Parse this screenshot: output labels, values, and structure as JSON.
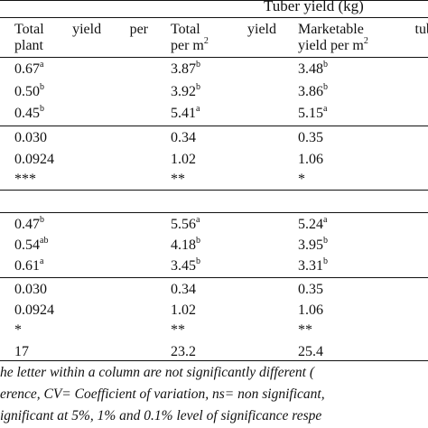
{
  "header": {
    "group_title": "Tuber yield (kg)",
    "col1": {
      "line1_words": [
        "Total",
        "yield",
        "per"
      ],
      "line2": "plant"
    },
    "col2": {
      "line1_words": [
        "Total",
        "yield"
      ],
      "line2_base": "per m",
      "line2_sup": "2"
    },
    "col3": {
      "line1_words": [
        "Marketable",
        "tub"
      ],
      "line2_base": "yield per m",
      "line2_sup": "2"
    }
  },
  "section1": {
    "rows": [
      {
        "c1": "0.67",
        "c1s": "a",
        "c2": "3.87",
        "c2s": "b",
        "c3": "3.48",
        "c3s": "b"
      },
      {
        "c1": "0.50",
        "c1s": "b",
        "c2": "3.92",
        "c2s": "b",
        "c3": "3.86",
        "c3s": "b"
      },
      {
        "c1": "0.45",
        "c1s": "b",
        "c2": "5.41",
        "c2s": "a",
        "c3": "5.15",
        "c3s": "a"
      }
    ],
    "stats": [
      {
        "c1": "0.030",
        "c2": "0.34",
        "c3": "0.35"
      },
      {
        "c1": "0.0924",
        "c2": "1.02",
        "c3": "1.06"
      },
      {
        "c1": "***",
        "c2": "**",
        "c3": "*"
      }
    ]
  },
  "section2": {
    "rows": [
      {
        "c1": "0.47",
        "c1s": "b",
        "c2": "5.56",
        "c2s": "a",
        "c3": "5.24",
        "c3s": "a"
      },
      {
        "c1": "0.54",
        "c1s": "ab",
        "c2": "4.18",
        "c2s": "b",
        "c3": "3.95",
        "c3s": "b"
      },
      {
        "c1": "0.61",
        "c1s": "a",
        "c2": "3.45",
        "c2s": "b",
        "c3": "3.31",
        "c3s": "b"
      }
    ],
    "stats": [
      {
        "c1": "0.030",
        "c2": "0.34",
        "c3": "0.35"
      },
      {
        "c1": "0.0924",
        "c2": "1.02",
        "c3": "1.06"
      },
      {
        "c1": "*",
        "c2": "**",
        "c3": "**"
      },
      {
        "c1": "17",
        "c2": "23.2",
        "c3": "25.4"
      }
    ]
  },
  "footnotes": {
    "line1": "he letter within a column are not significantly different (",
    "line2": "erence, CV= Coefficient of variation, ns= non significant,",
    "line3": "ignificant at 5%, 1% and 0.1% level of significance respe"
  }
}
